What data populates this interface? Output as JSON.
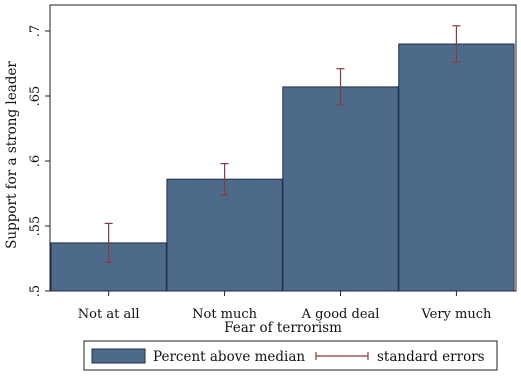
{
  "chart_data": {
    "type": "bar",
    "categories": [
      "Not at all",
      "Not much",
      "A good deal",
      "Very much"
    ],
    "series": [
      {
        "name": "Percent above median",
        "values": [
          0.537,
          0.586,
          0.657,
          0.69
        ],
        "error_low": [
          0.522,
          0.574,
          0.643,
          0.676
        ],
        "error_high": [
          0.552,
          0.598,
          0.671,
          0.704
        ]
      }
    ],
    "error_bar_label": "standard errors",
    "xlabel": "Fear of terrorism",
    "ylabel": "Support for a strong leader",
    "ylim": [
      0.5,
      0.72
    ],
    "yticks": [
      0.5,
      0.55,
      0.6,
      0.65,
      0.7
    ],
    "ytick_labels": [
      ".5",
      ".55",
      ".6",
      ".65",
      ".7"
    ],
    "grid": false,
    "legend_position": "bottom",
    "colors": {
      "bar": "#4e6a8a",
      "bar_edge": "#1f2e45",
      "error_bar": "#8a3a3a",
      "axis": "#222222"
    }
  }
}
